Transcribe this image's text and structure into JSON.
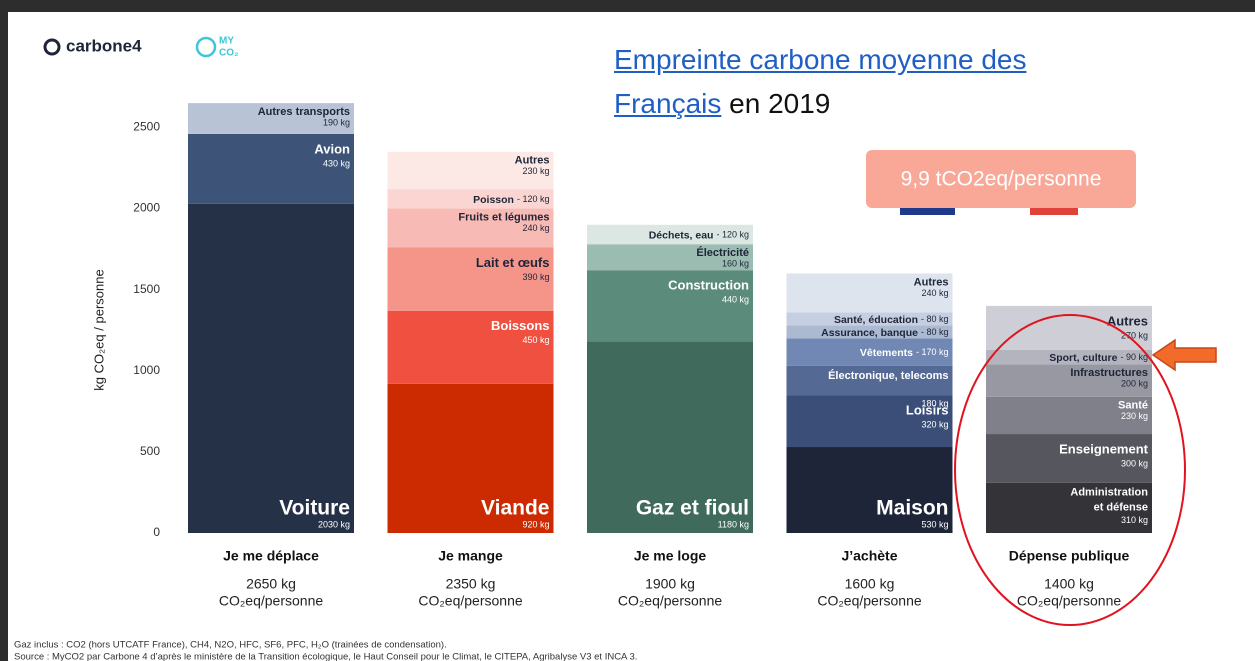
{
  "logos": [
    "carbone4",
    "MY",
    "CO₂"
  ],
  "title_link": "Empreinte carbone moyenne des Français",
  "title_rest": "en 2019",
  "badge": "9,9 tCO2eq/personne",
  "footnotes": [
    "Gaz inclus : CO2 (hors UTCATF France), CH4, N2O, HFC, SF6, PFC, H₂O (trainées de condensation).",
    "Source : MyCO2 par Carbone 4 d’après le ministère de la Transition écologique, le Haut Conseil pour le Climat, le CITEPA, Agribalyse V3 et INCA 3."
  ],
  "chart_data": {
    "type": "stacked_bar",
    "y_label": "kg CO₂eq / personne",
    "ylim": [
      0,
      2700
    ],
    "yticks": [
      0,
      500,
      1000,
      1500,
      2000,
      2500
    ],
    "total_unit": "CO₂eq/personne",
    "stacks": [
      {
        "category": "Je me déplace",
        "total": 2650,
        "total_label": "2650 kg",
        "segments": [
          {
            "name": "Voiture",
            "value": 2030,
            "value_label": "2030 kg",
            "color": "#253147"
          },
          {
            "name": "Avion",
            "value": 430,
            "value_label": "430 kg",
            "color": "#3d5478"
          },
          {
            "name": "Autres transports",
            "value": 190,
            "value_label": "190 kg",
            "color": "#b8c4d6"
          }
        ]
      },
      {
        "category": "Je mange",
        "total": 2350,
        "total_label": "2350 kg",
        "segments": [
          {
            "name": "Viande",
            "value": 920,
            "value_label": "920 kg",
            "color": "#cc2a00"
          },
          {
            "name": "Boissons",
            "value": 450,
            "value_label": "450 kg",
            "color": "#f0503f"
          },
          {
            "name": "Lait et œufs",
            "value": 390,
            "value_label": "390 kg",
            "color": "#f5958a"
          },
          {
            "name": "Fruits et légumes",
            "value": 240,
            "value_label": "240 kg",
            "color": "#f8bab4"
          },
          {
            "name": "Poisson",
            "value": 120,
            "value_label": "- 120 kg",
            "color": "#fad5d1"
          },
          {
            "name": "Autres",
            "value": 230,
            "value_label": "230 kg",
            "color": "#fce8e5"
          }
        ]
      },
      {
        "category": "Je me loge",
        "total": 1900,
        "total_label": "1900 kg",
        "segments": [
          {
            "name": "Gaz et fioul",
            "value": 1180,
            "value_label": "1180 kg",
            "color": "#3f6a5c"
          },
          {
            "name": "Construction",
            "value": 440,
            "value_label": "440 kg",
            "color": "#5b8b7b"
          },
          {
            "name": "Électricité",
            "value": 160,
            "value_label": "160 kg",
            "color": "#9bbcb1"
          },
          {
            "name": "Déchets, eau",
            "value": 120,
            "value_label": "- 120 kg",
            "color": "#dce7e3"
          }
        ]
      },
      {
        "category": "J’achète",
        "total": 1600,
        "total_label": "1600 kg",
        "segments": [
          {
            "name": "Maison",
            "value": 530,
            "value_label": "530 kg",
            "color": "#1e2538"
          },
          {
            "name": "Loisirs",
            "value": 320,
            "value_label": "320 kg",
            "color": "#3b4e78"
          },
          {
            "name": "Électronique, telecoms",
            "value": 180,
            "value_label": "180 kg",
            "color": "#546a95"
          },
          {
            "name": "Vêtements",
            "value": 170,
            "value_label": "- 170 kg",
            "color": "#7088b3"
          },
          {
            "name": "Assurance, banque",
            "value": 80,
            "value_label": "- 80 kg",
            "color": "#abb9d1"
          },
          {
            "name": "Santé, éducation",
            "value": 80,
            "value_label": "- 80 kg",
            "color": "#c5cfe1"
          },
          {
            "name": "Autres",
            "value": 240,
            "value_label": "240 kg",
            "color": "#dee4ee"
          }
        ]
      },
      {
        "category": "Dépense publique",
        "total": 1400,
        "total_label": "1400 kg",
        "segments": [
          {
            "name": "Administration et défense",
            "value": 310,
            "value_label": "310 kg",
            "color": "#333338"
          },
          {
            "name": "Enseignement",
            "value": 300,
            "value_label": "300 kg",
            "color": "#56565e"
          },
          {
            "name": "Santé",
            "value": 230,
            "value_label": "230 kg",
            "color": "#80808a"
          },
          {
            "name": "Infrastructures",
            "value": 200,
            "value_label": "200 kg",
            "color": "#9898a3"
          },
          {
            "name": "Sport, culture",
            "value": 90,
            "value_label": "- 90 kg",
            "color": "#b4b4be"
          },
          {
            "name": "Autres",
            "value": 270,
            "value_label": "270 kg",
            "color": "#cecfd6"
          }
        ]
      }
    ]
  }
}
